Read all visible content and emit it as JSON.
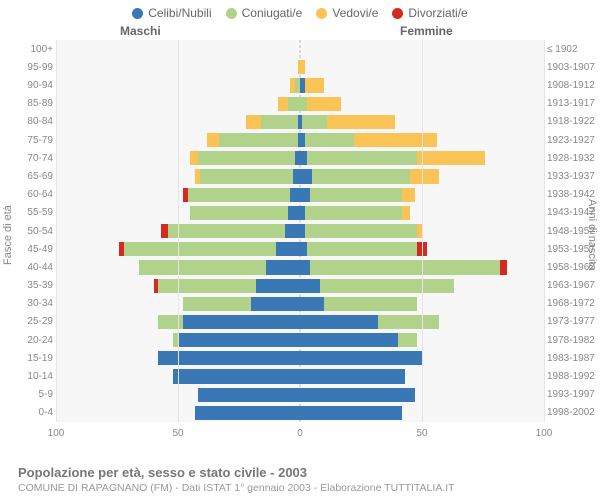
{
  "legend": [
    {
      "key": "celibi",
      "label": "Celibi/Nubili",
      "color": "#3a78b5"
    },
    {
      "key": "coniugati",
      "label": "Coniugati/e",
      "color": "#b0d28a"
    },
    {
      "key": "vedovi",
      "label": "Vedovi/e",
      "color": "#f9c455"
    },
    {
      "key": "divorziati",
      "label": "Divorziati/e",
      "color": "#d42a20"
    }
  ],
  "header_male": "Maschi",
  "header_female": "Femmine",
  "axis_left_title": "Fasce di età",
  "axis_right_title": "Anni di nascita",
  "title_main": "Popolazione per età, sesso e stato civile - 2003",
  "title_sub": "COMUNE DI RAPAGNANO (FM) - Dati ISTAT 1° gennaio 2003 - Elaborazione TUTTITALIA.IT",
  "xaxis": {
    "max": 100,
    "ticks": [
      100,
      50,
      0,
      50,
      100
    ]
  },
  "background": "#f7f7f7",
  "grid_color": "#e5e5e5",
  "center_color": "#bbbbbb",
  "rows": [
    {
      "age": "0-4",
      "birth": "1998-2002",
      "m": {
        "celibi": 43,
        "coniugati": 0,
        "vedovi": 0,
        "divorziati": 0
      },
      "f": {
        "celibi": 42,
        "coniugati": 0,
        "vedovi": 0,
        "divorziati": 0
      }
    },
    {
      "age": "5-9",
      "birth": "1993-1997",
      "m": {
        "celibi": 42,
        "coniugati": 0,
        "vedovi": 0,
        "divorziati": 0
      },
      "f": {
        "celibi": 47,
        "coniugati": 0,
        "vedovi": 0,
        "divorziati": 0
      }
    },
    {
      "age": "10-14",
      "birth": "1988-1992",
      "m": {
        "celibi": 52,
        "coniugati": 0,
        "vedovi": 0,
        "divorziati": 0
      },
      "f": {
        "celibi": 43,
        "coniugati": 0,
        "vedovi": 0,
        "divorziati": 0
      }
    },
    {
      "age": "15-19",
      "birth": "1983-1987",
      "m": {
        "celibi": 58,
        "coniugati": 0,
        "vedovi": 0,
        "divorziati": 0
      },
      "f": {
        "celibi": 50,
        "coniugati": 0,
        "vedovi": 0,
        "divorziati": 0
      }
    },
    {
      "age": "20-24",
      "birth": "1978-1982",
      "m": {
        "celibi": 50,
        "coniugati": 2,
        "vedovi": 0,
        "divorziati": 0
      },
      "f": {
        "celibi": 40,
        "coniugati": 8,
        "vedovi": 0,
        "divorziati": 0
      }
    },
    {
      "age": "25-29",
      "birth": "1973-1977",
      "m": {
        "celibi": 48,
        "coniugati": 10,
        "vedovi": 0,
        "divorziati": 0
      },
      "f": {
        "celibi": 32,
        "coniugati": 25,
        "vedovi": 0,
        "divorziati": 0
      }
    },
    {
      "age": "30-34",
      "birth": "1968-1972",
      "m": {
        "celibi": 20,
        "coniugati": 28,
        "vedovi": 0,
        "divorziati": 0
      },
      "f": {
        "celibi": 10,
        "coniugati": 38,
        "vedovi": 0,
        "divorziati": 0
      }
    },
    {
      "age": "35-39",
      "birth": "1963-1967",
      "m": {
        "celibi": 18,
        "coniugati": 40,
        "vedovi": 0,
        "divorziati": 2
      },
      "f": {
        "celibi": 8,
        "coniugati": 55,
        "vedovi": 0,
        "divorziati": 0
      }
    },
    {
      "age": "40-44",
      "birth": "1958-1962",
      "m": {
        "celibi": 14,
        "coniugati": 52,
        "vedovi": 0,
        "divorziati": 0
      },
      "f": {
        "celibi": 4,
        "coniugati": 78,
        "vedovi": 0,
        "divorziati": 3
      }
    },
    {
      "age": "45-49",
      "birth": "1953-1957",
      "m": {
        "celibi": 10,
        "coniugati": 62,
        "vedovi": 0,
        "divorziati": 2
      },
      "f": {
        "celibi": 3,
        "coniugati": 45,
        "vedovi": 0,
        "divorziati": 4
      }
    },
    {
      "age": "50-54",
      "birth": "1948-1952",
      "m": {
        "celibi": 6,
        "coniugati": 48,
        "vedovi": 0,
        "divorziati": 3
      },
      "f": {
        "celibi": 2,
        "coniugati": 46,
        "vedovi": 2,
        "divorziati": 0
      }
    },
    {
      "age": "55-59",
      "birth": "1943-1947",
      "m": {
        "celibi": 5,
        "coniugati": 40,
        "vedovi": 0,
        "divorziati": 0
      },
      "f": {
        "celibi": 2,
        "coniugati": 40,
        "vedovi": 3,
        "divorziati": 0
      }
    },
    {
      "age": "60-64",
      "birth": "1938-1942",
      "m": {
        "celibi": 4,
        "coniugati": 42,
        "vedovi": 0,
        "divorziati": 2
      },
      "f": {
        "celibi": 4,
        "coniugati": 38,
        "vedovi": 5,
        "divorziati": 0
      }
    },
    {
      "age": "65-69",
      "birth": "1933-1937",
      "m": {
        "celibi": 3,
        "coniugati": 38,
        "vedovi": 2,
        "divorziati": 0
      },
      "f": {
        "celibi": 5,
        "coniugati": 40,
        "vedovi": 12,
        "divorziati": 0
      }
    },
    {
      "age": "70-74",
      "birth": "1928-1932",
      "m": {
        "celibi": 2,
        "coniugati": 40,
        "vedovi": 3,
        "divorziati": 0
      },
      "f": {
        "celibi": 3,
        "coniugati": 45,
        "vedovi": 28,
        "divorziati": 0
      }
    },
    {
      "age": "75-79",
      "birth": "1923-1927",
      "m": {
        "celibi": 1,
        "coniugati": 32,
        "vedovi": 5,
        "divorziati": 0
      },
      "f": {
        "celibi": 2,
        "coniugati": 20,
        "vedovi": 34,
        "divorziati": 0
      }
    },
    {
      "age": "80-84",
      "birth": "1918-1922",
      "m": {
        "celibi": 1,
        "coniugati": 15,
        "vedovi": 6,
        "divorziati": 0
      },
      "f": {
        "celibi": 1,
        "coniugati": 10,
        "vedovi": 28,
        "divorziati": 0
      }
    },
    {
      "age": "85-89",
      "birth": "1913-1917",
      "m": {
        "celibi": 0,
        "coniugati": 5,
        "vedovi": 4,
        "divorziati": 0
      },
      "f": {
        "celibi": 0,
        "coniugati": 3,
        "vedovi": 14,
        "divorziati": 0
      }
    },
    {
      "age": "90-94",
      "birth": "1908-1912",
      "m": {
        "celibi": 0,
        "coniugati": 2,
        "vedovi": 2,
        "divorziati": 0
      },
      "f": {
        "celibi": 2,
        "coniugati": 0,
        "vedovi": 8,
        "divorziati": 0
      }
    },
    {
      "age": "95-99",
      "birth": "1903-1907",
      "m": {
        "celibi": 0,
        "coniugati": 0,
        "vedovi": 1,
        "divorziati": 0
      },
      "f": {
        "celibi": 0,
        "coniugati": 0,
        "vedovi": 2,
        "divorziati": 0
      }
    },
    {
      "age": "100+",
      "birth": "≤ 1902",
      "m": {
        "celibi": 0,
        "coniugati": 0,
        "vedovi": 0,
        "divorziati": 0
      },
      "f": {
        "celibi": 0,
        "coniugati": 0,
        "vedovi": 0,
        "divorziati": 0
      }
    }
  ]
}
